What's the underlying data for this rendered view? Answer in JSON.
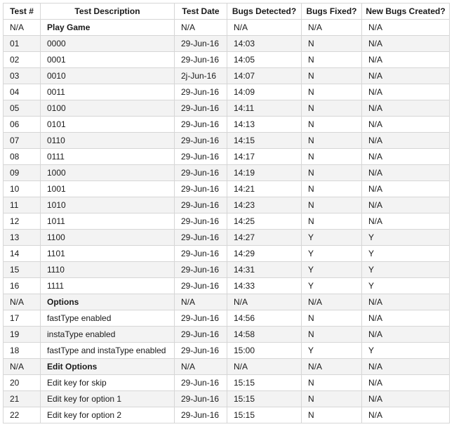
{
  "table": {
    "headers": [
      "Test #",
      "Test Description",
      "Test Date",
      "Bugs Detected?",
      "Bugs Fixed?",
      "New Bugs Created?"
    ],
    "rows": [
      [
        "N/A",
        "Play Game",
        "N/A",
        "N/A",
        "N/A",
        "N/A"
      ],
      [
        "01",
        "0000",
        "29-Jun-16",
        "14:03",
        "N",
        "N/A"
      ],
      [
        "02",
        "0001",
        "29-Jun-16",
        "14:05",
        "N",
        "N/A"
      ],
      [
        "03",
        "0010",
        "2j-Jun-16",
        "14:07",
        "N",
        "N/A"
      ],
      [
        "04",
        "0011",
        "29-Jun-16",
        "14:09",
        "N",
        "N/A"
      ],
      [
        "05",
        "0100",
        "29-Jun-16",
        "14:11",
        "N",
        "N/A"
      ],
      [
        "06",
        "0101",
        "29-Jun-16",
        "14:13",
        "N",
        "N/A"
      ],
      [
        "07",
        "0110",
        "29-Jun-16",
        "14:15",
        "N",
        "N/A"
      ],
      [
        "08",
        "0111",
        "29-Jun-16",
        "14:17",
        "N",
        "N/A"
      ],
      [
        "09",
        "1000",
        "29-Jun-16",
        "14:19",
        "N",
        "N/A"
      ],
      [
        "10",
        "1001",
        "29-Jun-16",
        "14:21",
        "N",
        "N/A"
      ],
      [
        "11",
        "1010",
        "29-Jun-16",
        "14:23",
        "N",
        "N/A"
      ],
      [
        "12",
        "1011",
        "29-Jun-16",
        "14:25",
        "N",
        "N/A"
      ],
      [
        "13",
        "1100",
        "29-Jun-16",
        "14:27",
        "Y",
        "Y"
      ],
      [
        "14",
        "1101",
        "29-Jun-16",
        "14:29",
        "Y",
        "Y"
      ],
      [
        "15",
        "1110",
        "29-Jun-16",
        "14:31",
        "Y",
        "Y"
      ],
      [
        "16",
        "1111",
        "29-Jun-16",
        "14:33",
        "Y",
        "Y"
      ],
      [
        "N/A",
        "Options",
        "N/A",
        "N/A",
        "N/A",
        "N/A"
      ],
      [
        "17",
        "fastType enabled",
        "29-Jun-16",
        "14:56",
        "N",
        "N/A"
      ],
      [
        "19",
        "instaType enabled",
        "29-Jun-16",
        "14:58",
        "N",
        "N/A"
      ],
      [
        "18",
        "fastType and instaType enabled",
        "29-Jun-16",
        "15:00",
        "Y",
        "Y"
      ],
      [
        "N/A",
        "Edit Options",
        "N/A",
        "N/A",
        "N/A",
        "N/A"
      ],
      [
        "20",
        "Edit key for skip",
        "29-Jun-16",
        "15:15",
        "N",
        "N/A"
      ],
      [
        "21",
        "Edit key for option 1",
        "29-Jun-16",
        "15:15",
        "N",
        "N/A"
      ],
      [
        "22",
        "Edit key for option 2",
        "29-Jun-16",
        "15:15",
        "N",
        "N/A"
      ]
    ]
  }
}
